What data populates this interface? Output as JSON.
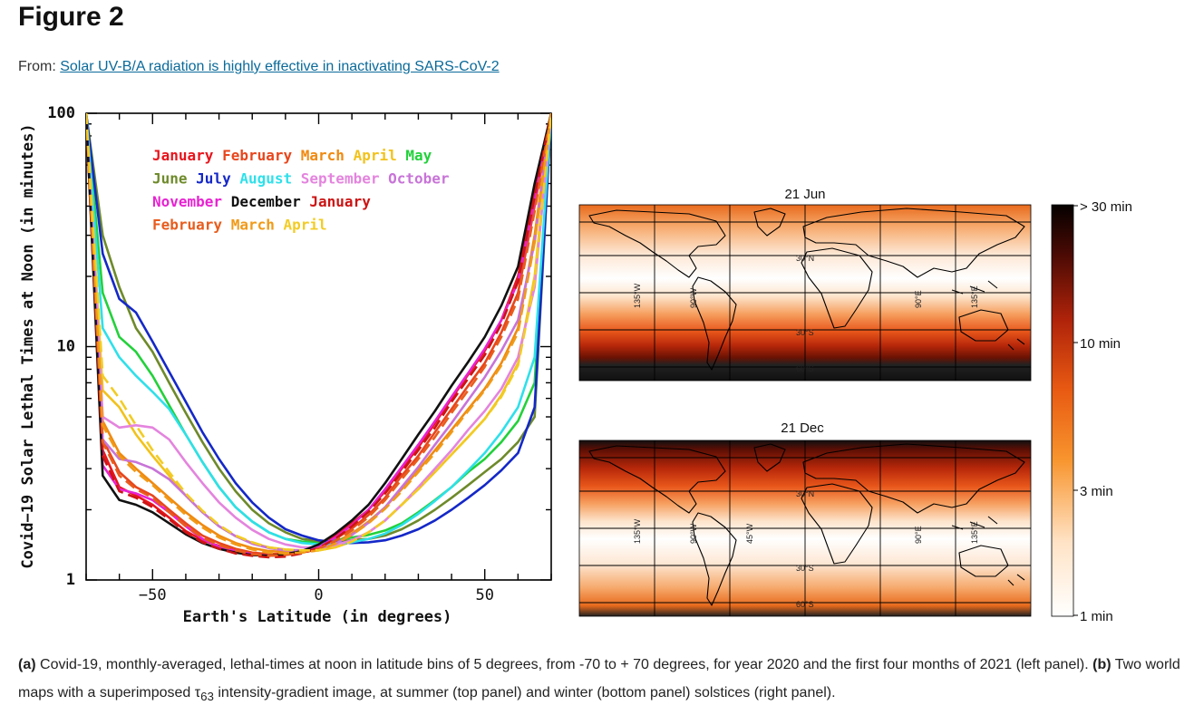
{
  "header": {
    "title": "Figure 2",
    "from_label": "From:",
    "article_title": "Solar UV-B/A radiation is highly effective in inactivating SARS-CoV-2"
  },
  "chart_data": [
    {
      "type": "line",
      "panel": "a",
      "xlabel": "Earth's Latitude (in degrees)",
      "ylabel": "Covid−19 Solar Lethal Times at Noon (in minutes)",
      "xlim": [
        -70,
        70
      ],
      "ylim": [
        1,
        100
      ],
      "yscale": "log",
      "xticks": [
        "−50",
        "0",
        "50"
      ],
      "yticks": [
        "1",
        "10",
        "100"
      ],
      "x": [
        -70,
        -65,
        -60,
        -55,
        -50,
        -45,
        -40,
        -35,
        -30,
        -25,
        -20,
        -15,
        -10,
        -5,
        0,
        5,
        10,
        15,
        20,
        25,
        30,
        35,
        40,
        45,
        50,
        55,
        60,
        65,
        70
      ],
      "legend_rows": [
        [
          {
            "label": "January",
            "color": "#e8141c"
          },
          {
            "label": "February",
            "color": "#e8461c"
          },
          {
            "label": "March",
            "color": "#f08a10"
          },
          {
            "label": "April",
            "color": "#f2c21a"
          },
          {
            "label": "May",
            "color": "#22d13a"
          }
        ],
        [
          {
            "label": "June",
            "color": "#6e8a2a"
          },
          {
            "label": "July",
            "color": "#1428c8"
          },
          {
            "label": "August",
            "color": "#2ee0ea"
          },
          {
            "label": "September",
            "color": "#e484de"
          },
          {
            "label": "October",
            "color": "#c874d8"
          }
        ],
        [
          {
            "label": "November",
            "color": "#e822d2"
          },
          {
            "label": "December",
            "color": "#111111"
          },
          {
            "label": "January",
            "color": "#cc1414"
          }
        ],
        [
          {
            "label": "February",
            "color": "#e85c1c"
          },
          {
            "label": "March",
            "color": "#f09a18"
          },
          {
            "label": "April",
            "color": "#f2cc24"
          }
        ]
      ],
      "series": [
        {
          "name": "January 2020",
          "color": "#e8141c",
          "dash": false,
          "values": [
            100,
            3.6,
            2.5,
            2.3,
            2.1,
            1.85,
            1.62,
            1.48,
            1.4,
            1.34,
            1.3,
            1.28,
            1.29,
            1.33,
            1.4,
            1.55,
            1.75,
            2.0,
            2.4,
            3.0,
            3.7,
            4.7,
            6.0,
            7.6,
            9.6,
            13,
            20,
            45,
            100
          ]
        },
        {
          "name": "February 2020",
          "color": "#e8461c",
          "dash": false,
          "values": [
            100,
            4.0,
            2.9,
            2.5,
            2.3,
            2.0,
            1.75,
            1.55,
            1.44,
            1.36,
            1.31,
            1.29,
            1.3,
            1.33,
            1.38,
            1.5,
            1.66,
            1.9,
            2.25,
            2.8,
            3.4,
            4.3,
            5.4,
            6.8,
            8.5,
            11.5,
            17,
            40,
            100
          ]
        },
        {
          "name": "March 2020",
          "color": "#f08a10",
          "dash": false,
          "values": [
            100,
            4.8,
            3.5,
            3.0,
            2.6,
            2.25,
            1.95,
            1.72,
            1.55,
            1.44,
            1.37,
            1.33,
            1.32,
            1.33,
            1.36,
            1.45,
            1.58,
            1.78,
            2.05,
            2.45,
            2.95,
            3.6,
            4.4,
            5.4,
            6.6,
            8.5,
            12,
            30,
            100
          ]
        },
        {
          "name": "April 2020",
          "color": "#f2c21a",
          "dash": false,
          "values": [
            100,
            6.5,
            5.5,
            4.2,
            3.4,
            2.8,
            2.3,
            1.95,
            1.7,
            1.54,
            1.44,
            1.38,
            1.35,
            1.34,
            1.34,
            1.38,
            1.46,
            1.6,
            1.8,
            2.1,
            2.45,
            2.9,
            3.45,
            4.1,
            4.9,
            6.2,
            8.5,
            20,
            100
          ]
        },
        {
          "name": "May 2020",
          "color": "#22d13a",
          "dash": false,
          "values": [
            100,
            17,
            11,
            9.5,
            7.5,
            5.6,
            4.2,
            3.2,
            2.5,
            2.05,
            1.78,
            1.6,
            1.5,
            1.46,
            1.45,
            1.48,
            1.52,
            1.56,
            1.63,
            1.75,
            1.95,
            2.2,
            2.5,
            2.9,
            3.3,
            3.9,
            4.8,
            7,
            100
          ]
        },
        {
          "name": "June 2020",
          "color": "#6e8a2a",
          "dash": false,
          "values": [
            100,
            30,
            18,
            12,
            9.5,
            7.0,
            5.2,
            3.9,
            3.0,
            2.4,
            2.0,
            1.75,
            1.6,
            1.5,
            1.47,
            1.46,
            1.48,
            1.5,
            1.55,
            1.65,
            1.8,
            2.0,
            2.25,
            2.55,
            2.9,
            3.3,
            3.9,
            5,
            100
          ]
        },
        {
          "name": "July 2020",
          "color": "#1428c8",
          "dash": false,
          "values": [
            100,
            25,
            16,
            14,
            10.5,
            7.8,
            5.8,
            4.3,
            3.3,
            2.6,
            2.15,
            1.85,
            1.65,
            1.55,
            1.48,
            1.45,
            1.44,
            1.45,
            1.48,
            1.55,
            1.65,
            1.8,
            2.0,
            2.25,
            2.55,
            2.95,
            3.5,
            5.5,
            100
          ]
        },
        {
          "name": "August 2020",
          "color": "#2ee0ea",
          "dash": false,
          "values": [
            100,
            12,
            9,
            7.5,
            6.4,
            5.4,
            4.2,
            3.2,
            2.5,
            2.05,
            1.78,
            1.6,
            1.5,
            1.44,
            1.42,
            1.43,
            1.45,
            1.5,
            1.58,
            1.72,
            1.92,
            2.18,
            2.5,
            2.95,
            3.5,
            4.3,
            5.5,
            9,
            100
          ]
        },
        {
          "name": "September 2020",
          "color": "#e484de",
          "dash": false,
          "values": [
            100,
            5.0,
            4.5,
            4.6,
            4.5,
            4.0,
            3.2,
            2.6,
            2.15,
            1.85,
            1.64,
            1.5,
            1.42,
            1.38,
            1.38,
            1.41,
            1.48,
            1.6,
            1.8,
            2.1,
            2.5,
            3.0,
            3.6,
            4.4,
            5.3,
            6.6,
            9,
            18,
            100
          ]
        },
        {
          "name": "October 2020",
          "color": "#c874d8",
          "dash": false,
          "values": [
            100,
            4.0,
            3.3,
            3.2,
            3.0,
            2.7,
            2.3,
            1.95,
            1.7,
            1.54,
            1.43,
            1.37,
            1.34,
            1.34,
            1.36,
            1.43,
            1.56,
            1.76,
            2.05,
            2.5,
            3.05,
            3.8,
            4.7,
            5.9,
            7.4,
            9.6,
            13,
            28,
            100
          ]
        },
        {
          "name": "November 2020",
          "color": "#e822d2",
          "dash": false,
          "values": [
            100,
            3.1,
            2.45,
            2.35,
            2.2,
            1.95,
            1.7,
            1.5,
            1.39,
            1.33,
            1.29,
            1.27,
            1.28,
            1.31,
            1.38,
            1.52,
            1.72,
            2.0,
            2.45,
            3.05,
            3.8,
            4.8,
            6.1,
            7.7,
            9.8,
            13,
            19,
            42,
            100
          ]
        },
        {
          "name": "December 2020",
          "color": "#111111",
          "dash": false,
          "values": [
            100,
            2.8,
            2.2,
            2.1,
            1.95,
            1.75,
            1.57,
            1.44,
            1.36,
            1.31,
            1.28,
            1.27,
            1.29,
            1.33,
            1.42,
            1.58,
            1.8,
            2.1,
            2.6,
            3.3,
            4.2,
            5.3,
            6.8,
            8.6,
            11,
            15,
            22,
            50,
            100
          ]
        },
        {
          "name": "January 2021",
          "color": "#cc1414",
          "dash": true,
          "values": [
            100,
            3.4,
            2.4,
            2.25,
            2.05,
            1.82,
            1.6,
            1.45,
            1.36,
            1.3,
            1.27,
            1.25,
            1.26,
            1.3,
            1.37,
            1.5,
            1.7,
            1.96,
            2.35,
            2.9,
            3.6,
            4.5,
            5.8,
            7.3,
            9.2,
            12.5,
            19,
            44,
            100
          ]
        },
        {
          "name": "February 2021",
          "color": "#e85c1c",
          "dash": true,
          "values": [
            100,
            3.9,
            2.8,
            2.45,
            2.25,
            1.95,
            1.7,
            1.52,
            1.41,
            1.34,
            1.29,
            1.27,
            1.28,
            1.31,
            1.36,
            1.47,
            1.63,
            1.86,
            2.2,
            2.7,
            3.3,
            4.1,
            5.2,
            6.5,
            8.2,
            11,
            16,
            38,
            100
          ]
        },
        {
          "name": "March 2021",
          "color": "#f09a18",
          "dash": true,
          "values": [
            100,
            4.6,
            3.4,
            2.9,
            2.55,
            2.2,
            1.9,
            1.68,
            1.52,
            1.42,
            1.35,
            1.31,
            1.3,
            1.31,
            1.34,
            1.43,
            1.56,
            1.75,
            2.02,
            2.4,
            2.9,
            3.5,
            4.3,
            5.3,
            6.5,
            8.3,
            11.5,
            28,
            100
          ]
        },
        {
          "name": "April 2021",
          "color": "#f2cc24",
          "dash": true,
          "values": [
            100,
            7.5,
            6.0,
            4.6,
            3.6,
            2.9,
            2.35,
            1.98,
            1.72,
            1.55,
            1.45,
            1.38,
            1.35,
            1.34,
            1.34,
            1.38,
            1.46,
            1.6,
            1.8,
            2.1,
            2.45,
            2.9,
            3.45,
            4.1,
            4.9,
            6.1,
            8.3,
            19,
            100
          ]
        }
      ]
    },
    {
      "type": "heatmap",
      "panel": "b",
      "maps": [
        {
          "title": "21 Jun",
          "lon_labels": [
            "135°W",
            "90°W",
            "90°E",
            "135°E"
          ],
          "lat_labels": [
            "30°N",
            "30°S",
            "60°S"
          ]
        },
        {
          "title": "21 Dec",
          "lon_labels": [
            "135°W",
            "90°W",
            "45°W",
            "90°E",
            "135°E"
          ],
          "lat_labels": [
            "30°N",
            "30°S",
            "60°S"
          ]
        }
      ],
      "colorbar": {
        "labels": [
          "> 30 min",
          "10 min",
          "3 min",
          "1 min"
        ],
        "min": "1 min",
        "max": "> 30 min",
        "scale": "log"
      }
    }
  ],
  "caption": {
    "a_label": "(a)",
    "a_text": " Covid-19, monthly-averaged, lethal-times at noon in latitude bins of 5 degrees, from -70 to + 70 degrees, for year 2020 and the first four months of 2021 (left panel). ",
    "b_label": "(b)",
    "b_text_1": " Two world maps with a superimposed ",
    "tau": "τ",
    "tau_sub": "63",
    "b_text_2": " intensity-gradient image, at summer (top panel) and winter (bottom panel) solstices (right panel)."
  }
}
